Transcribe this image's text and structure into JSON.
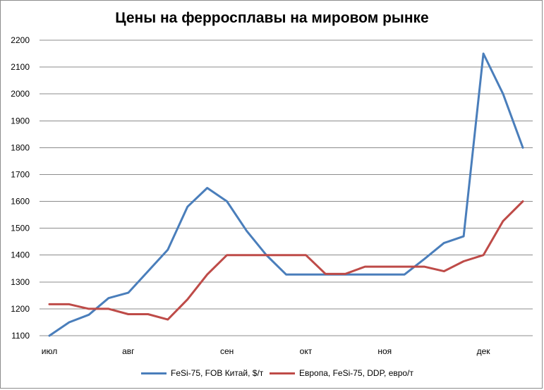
{
  "chart_data": {
    "type": "line",
    "title": "Цены на ферросплавы на мировом рынке",
    "xlabel": "",
    "ylabel": "",
    "ylim": [
      1100,
      2200
    ],
    "yticks": [
      1100,
      1200,
      1300,
      1400,
      1500,
      1600,
      1700,
      1800,
      1900,
      2000,
      2100,
      2200
    ],
    "grid": true,
    "legend": "bottom",
    "month_labels": [
      {
        "label": "июл",
        "index": 0
      },
      {
        "label": "авг",
        "index": 4
      },
      {
        "label": "сен",
        "index": 9
      },
      {
        "label": "окт",
        "index": 13
      },
      {
        "label": "ноя",
        "index": 17
      },
      {
        "label": "дек",
        "index": 22
      }
    ],
    "series": [
      {
        "name": "FeSi-75, FOB Китай, $/т",
        "color": "#4a7ebb",
        "values": [
          1100,
          1150,
          1178,
          1240,
          1260,
          1340,
          1420,
          1580,
          1650,
          1600,
          1490,
          1400,
          1328,
          1328,
          1328,
          1328,
          1328,
          1328,
          1328,
          1385,
          1445,
          1470,
          2150,
          2000,
          1800
        ]
      },
      {
        "name": "Европа, FeSi-75, DDP, евро/т",
        "color": "#be4b48",
        "values": [
          1217,
          1217,
          1200,
          1200,
          1180,
          1180,
          1160,
          1235,
          1328,
          1400,
          1400,
          1400,
          1400,
          1400,
          1330,
          1330,
          1357,
          1357,
          1357,
          1357,
          1340,
          1377,
          1400,
          1527,
          1600
        ]
      }
    ]
  }
}
